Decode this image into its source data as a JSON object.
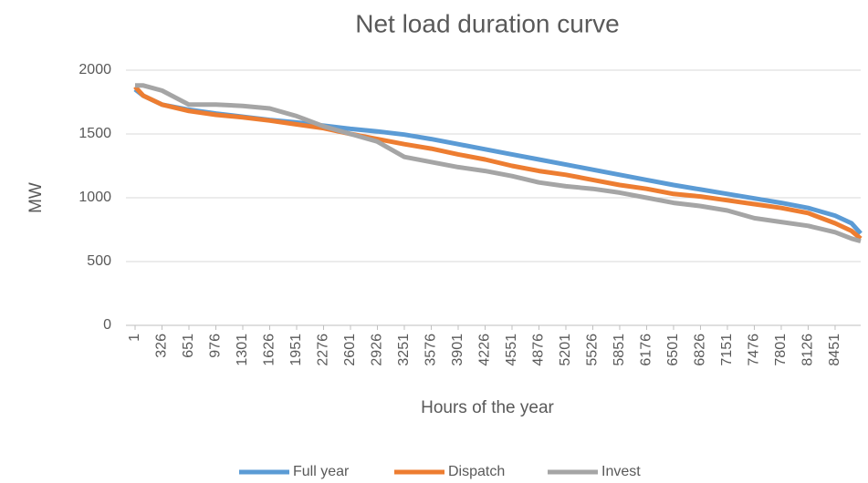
{
  "chart_data": {
    "type": "line",
    "title": "Net load duration curve",
    "x_label": "Hours of the year",
    "y_label": "MW",
    "x": [
      1,
      100,
      326,
      651,
      976,
      1301,
      1626,
      1951,
      2276,
      2601,
      2926,
      3251,
      3576,
      3901,
      4226,
      4551,
      4876,
      5201,
      5526,
      5851,
      6176,
      6501,
      6826,
      7151,
      7476,
      7801,
      8126,
      8451,
      8650,
      8760
    ],
    "series": [
      {
        "name": "Full year",
        "color": "#5b9bd5",
        "values": [
          1850,
          1800,
          1730,
          1690,
          1660,
          1635,
          1610,
          1590,
          1565,
          1540,
          1520,
          1495,
          1460,
          1420,
          1380,
          1340,
          1300,
          1260,
          1220,
          1180,
          1140,
          1100,
          1065,
          1030,
          995,
          960,
          920,
          860,
          800,
          720
        ]
      },
      {
        "name": "Dispatch",
        "color": "#ed7d31",
        "values": [
          1870,
          1800,
          1730,
          1680,
          1650,
          1630,
          1605,
          1575,
          1545,
          1500,
          1460,
          1420,
          1385,
          1340,
          1300,
          1250,
          1210,
          1180,
          1140,
          1100,
          1070,
          1030,
          1010,
          980,
          950,
          920,
          880,
          800,
          740,
          680
        ]
      },
      {
        "name": "Invest",
        "color": "#a5a5a5",
        "values": [
          1880,
          1880,
          1840,
          1730,
          1730,
          1720,
          1700,
          1640,
          1560,
          1500,
          1440,
          1320,
          1280,
          1240,
          1210,
          1170,
          1120,
          1090,
          1070,
          1040,
          1000,
          960,
          935,
          900,
          840,
          810,
          780,
          730,
          680,
          660
        ]
      }
    ],
    "xlim": [
      1,
      8760
    ],
    "xticks": [
      1,
      326,
      651,
      976,
      1301,
      1626,
      1951,
      2276,
      2601,
      2926,
      3251,
      3576,
      3901,
      4226,
      4551,
      4876,
      5201,
      5526,
      5851,
      6176,
      6501,
      6826,
      7151,
      7476,
      7801,
      8126,
      8451
    ],
    "ylim": [
      0,
      2000
    ],
    "yticks": [
      0,
      500,
      1000,
      1500,
      2000
    ],
    "grid": true,
    "legend": "bottom"
  }
}
